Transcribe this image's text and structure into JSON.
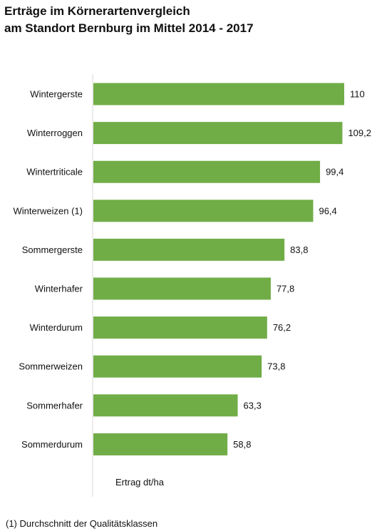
{
  "chart_data": {
    "type": "bar",
    "orientation": "horizontal",
    "title_lines": [
      "Erträge im Körnerartenvergleich",
      "am Standort Bernburg im Mittel 2014 - 2017"
    ],
    "categories": [
      "Wintergerste",
      "Winterroggen",
      "Wintertriticale",
      "Winterweizen (1)",
      "Sommergerste",
      "Winterhafer",
      "Winterdurum",
      "Sommerweizen",
      "Sommerhafer",
      "Sommerdurum"
    ],
    "values": [
      110,
      109.2,
      99.4,
      96.4,
      83.8,
      77.8,
      76.2,
      73.8,
      63.3,
      58.8
    ],
    "value_labels": [
      "110",
      "109,2",
      "99,4",
      "96,4",
      "83,8",
      "77,8",
      "76,2",
      "73,8",
      "63,3",
      "58,8"
    ],
    "xlabel": "Ertrag dt/ha",
    "xlim": [
      0,
      140
    ],
    "grid": false,
    "bar_color": "#70AD47",
    "axis_color": "#d9d9d9"
  },
  "footnote": "(1) Durchschnitt der Qualitätsklassen"
}
